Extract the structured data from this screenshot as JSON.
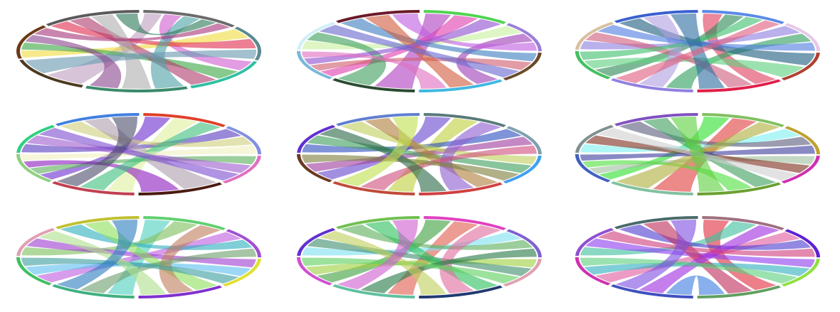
{
  "panels": [
    {
      "segments": [
        "#6b6b6b",
        "#5a8a90",
        "#2fbfa3",
        "#3a8a6a",
        "#4b3a1f",
        "#6b3a14",
        "#5a5a5a"
      ],
      "ribbons": [
        {
          "from": 0,
          "to": 4,
          "color": "#c0a0c0"
        },
        {
          "from": 0,
          "to": 2,
          "color": "#d060d0"
        },
        {
          "from": 1,
          "to": 5,
          "color": "#f0dc40"
        },
        {
          "from": 1,
          "to": 6,
          "color": "#e03050"
        },
        {
          "from": 2,
          "to": 5,
          "color": "#3fa848"
        },
        {
          "from": 2,
          "to": 6,
          "color": "#b04070"
        },
        {
          "from": 3,
          "to": 0,
          "color": "#4fa3a8"
        },
        {
          "from": 3,
          "to": 6,
          "color": "#b0b0b0"
        },
        {
          "from": 4,
          "to": 1,
          "color": "#6a9ab0"
        },
        {
          "from": 5,
          "to": 3,
          "color": "#8d4b8f"
        },
        {
          "from": 6,
          "to": 0,
          "color": "#2e7b5a"
        },
        {
          "from": 5,
          "to": 0,
          "color": "#a83a7a"
        }
      ]
    },
    {
      "segments": [
        "#4fd44f",
        "#9a80d8",
        "#6b4a2a",
        "#40b8e0",
        "#2a4a30",
        "#7ab8d8",
        "#d0f0f8",
        "#6b1a2a"
      ],
      "ribbons": [
        {
          "from": 0,
          "to": 4,
          "color": "#b040c0"
        },
        {
          "from": 0,
          "to": 5,
          "color": "#e040b0"
        },
        {
          "from": 1,
          "to": 6,
          "color": "#c8f0a0"
        },
        {
          "from": 1,
          "to": 3,
          "color": "#a040b8"
        },
        {
          "from": 2,
          "to": 7,
          "color": "#4080c0"
        },
        {
          "from": 2,
          "to": 5,
          "color": "#d06070"
        },
        {
          "from": 3,
          "to": 7,
          "color": "#d06040"
        },
        {
          "from": 4,
          "to": 6,
          "color": "#40a060"
        },
        {
          "from": 5,
          "to": 0,
          "color": "#9050d0"
        },
        {
          "from": 6,
          "to": 2,
          "color": "#6a6ad0"
        },
        {
          "from": 7,
          "to": 1,
          "color": "#c060e0"
        },
        {
          "from": 3,
          "to": 5,
          "color": "#e070c0"
        }
      ]
    },
    {
      "segments": [
        "#5a8ae8",
        "#e8c8e8",
        "#b04030",
        "#e0204a",
        "#9080e0",
        "#40c060",
        "#d8c0a0",
        "#3a60d0"
      ],
      "ribbons": [
        {
          "from": 0,
          "to": 3,
          "color": "#e04060"
        },
        {
          "from": 0,
          "to": 5,
          "color": "#2e8b57"
        },
        {
          "from": 1,
          "to": 6,
          "color": "#9080e0"
        },
        {
          "from": 1,
          "to": 4,
          "color": "#30a060"
        },
        {
          "from": 2,
          "to": 7,
          "color": "#206080"
        },
        {
          "from": 2,
          "to": 5,
          "color": "#60d080"
        },
        {
          "from": 3,
          "to": 6,
          "color": "#d06080"
        },
        {
          "from": 4,
          "to": 7,
          "color": "#b0a0e0"
        },
        {
          "from": 5,
          "to": 0,
          "color": "#40c070"
        },
        {
          "from": 6,
          "to": 1,
          "color": "#5080e0"
        },
        {
          "from": 7,
          "to": 3,
          "color": "#3070a0"
        },
        {
          "from": 4,
          "to": 0,
          "color": "#e06080"
        }
      ]
    },
    {
      "segments": [
        "#e0402a",
        "#8090e0",
        "#e070c0",
        "#4a1a10",
        "#c04050",
        "#90d080",
        "#30d080",
        "#4080e0"
      ],
      "ribbons": [
        {
          "from": 0,
          "to": 5,
          "color": "#7030d0"
        },
        {
          "from": 0,
          "to": 4,
          "color": "#e0f0a0"
        },
        {
          "from": 1,
          "to": 6,
          "color": "#5a40c0"
        },
        {
          "from": 1,
          "to": 7,
          "color": "#d0d080"
        },
        {
          "from": 2,
          "to": 5,
          "color": "#60b060"
        },
        {
          "from": 2,
          "to": 6,
          "color": "#a060d0"
        },
        {
          "from": 3,
          "to": 7,
          "color": "#b0a0b0"
        },
        {
          "from": 3,
          "to": 5,
          "color": "#9020c0"
        },
        {
          "from": 4,
          "to": 0,
          "color": "#40c080"
        },
        {
          "from": 5,
          "to": 1,
          "color": "#f0f0c0"
        },
        {
          "from": 6,
          "to": 2,
          "color": "#8050d0"
        },
        {
          "from": 7,
          "to": 4,
          "color": "#505070"
        }
      ]
    },
    {
      "segments": [
        "#5a7a7a",
        "#80a0b0",
        "#40a0f0",
        "#d04040",
        "#c04a3a",
        "#6a3a20",
        "#6030d0",
        "#6080d0"
      ],
      "ribbons": [
        {
          "from": 0,
          "to": 5,
          "color": "#6a4ad0"
        },
        {
          "from": 0,
          "to": 4,
          "color": "#c0d040"
        },
        {
          "from": 1,
          "to": 6,
          "color": "#3050c0"
        },
        {
          "from": 1,
          "to": 5,
          "color": "#a040a0"
        },
        {
          "from": 2,
          "to": 7,
          "color": "#c0d060"
        },
        {
          "from": 2,
          "to": 6,
          "color": "#40a060"
        },
        {
          "from": 3,
          "to": 7,
          "color": "#b08040"
        },
        {
          "from": 3,
          "to": 0,
          "color": "#9060d0"
        },
        {
          "from": 4,
          "to": 1,
          "color": "#d05080"
        },
        {
          "from": 5,
          "to": 2,
          "color": "#808040"
        },
        {
          "from": 6,
          "to": 3,
          "color": "#2e6b4a"
        },
        {
          "from": 7,
          "to": 4,
          "color": "#c0e050"
        }
      ]
    },
    {
      "segments": [
        "#80c060",
        "#c0a030",
        "#d030b0",
        "#6aa030",
        "#80c0a0",
        "#4060c0",
        "#809090",
        "#8050c0"
      ],
      "ribbons": [
        {
          "from": 0,
          "to": 5,
          "color": "#30e030"
        },
        {
          "from": 0,
          "to": 4,
          "color": "#e04040"
        },
        {
          "from": 1,
          "to": 6,
          "color": "#80f0f0"
        },
        {
          "from": 1,
          "to": 7,
          "color": "#606080"
        },
        {
          "from": 2,
          "to": 5,
          "color": "#a0c0a0"
        },
        {
          "from": 2,
          "to": 6,
          "color": "#803020"
        },
        {
          "from": 3,
          "to": 7,
          "color": "#40a060"
        },
        {
          "from": 3,
          "to": 5,
          "color": "#50e040"
        },
        {
          "from": 4,
          "to": 0,
          "color": "#b0b040"
        },
        {
          "from": 5,
          "to": 1,
          "color": "#4040a0"
        },
        {
          "from": 6,
          "to": 2,
          "color": "#d0d0d0"
        },
        {
          "from": 7,
          "to": 3,
          "color": "#60d040"
        }
      ]
    },
    {
      "segments": [
        "#60d070",
        "#a050d0",
        "#e0e030",
        "#8030d0",
        "#40b080",
        "#40c060",
        "#e0a0b0",
        "#c0c030"
      ],
      "ribbons": [
        {
          "from": 0,
          "to": 4,
          "color": "#50d0c0"
        },
        {
          "from": 0,
          "to": 6,
          "color": "#80c060"
        },
        {
          "from": 1,
          "to": 5,
          "color": "#c060e0"
        },
        {
          "from": 1,
          "to": 7,
          "color": "#30b0c0"
        },
        {
          "from": 2,
          "to": 6,
          "color": "#a040d0"
        },
        {
          "from": 2,
          "to": 5,
          "color": "#60c0f0"
        },
        {
          "from": 3,
          "to": 7,
          "color": "#90e060"
        },
        {
          "from": 3,
          "to": 0,
          "color": "#c08060"
        },
        {
          "from": 4,
          "to": 1,
          "color": "#70a070"
        },
        {
          "from": 5,
          "to": 2,
          "color": "#40a0a0"
        },
        {
          "from": 6,
          "to": 3,
          "color": "#b0e090"
        },
        {
          "from": 7,
          "to": 4,
          "color": "#3080c0"
        }
      ]
    },
    {
      "segments": [
        "#e040c0",
        "#8060d0",
        "#e0a0b0",
        "#203a70",
        "#60c0a0",
        "#d050d0",
        "#6030d0",
        "#70c050"
      ],
      "ribbons": [
        {
          "from": 0,
          "to": 5,
          "color": "#40a040"
        },
        {
          "from": 0,
          "to": 4,
          "color": "#e06050"
        },
        {
          "from": 1,
          "to": 6,
          "color": "#80e0f0"
        },
        {
          "from": 1,
          "to": 7,
          "color": "#60b060"
        },
        {
          "from": 2,
          "to": 5,
          "color": "#a0d040"
        },
        {
          "from": 2,
          "to": 6,
          "color": "#409070"
        },
        {
          "from": 3,
          "to": 7,
          "color": "#30c060"
        },
        {
          "from": 3,
          "to": 0,
          "color": "#e070a0"
        },
        {
          "from": 4,
          "to": 1,
          "color": "#2a7a4a"
        },
        {
          "from": 5,
          "to": 2,
          "color": "#60d060"
        },
        {
          "from": 6,
          "to": 3,
          "color": "#c0d060"
        },
        {
          "from": 7,
          "to": 4,
          "color": "#d060d0"
        }
      ]
    },
    {
      "segments": [
        "#a07080",
        "#6020d0",
        "#90e040",
        "#60a060",
        "#4050c0",
        "#d030b0",
        "#9050d0",
        "#4a6a6a"
      ],
      "ribbons": [
        {
          "from": 0,
          "to": 3,
          "color": "#e03040"
        },
        {
          "from": 0,
          "to": 6,
          "color": "#40c0a0"
        },
        {
          "from": 1,
          "to": 5,
          "color": "#e060a0"
        },
        {
          "from": 1,
          "to": 7,
          "color": "#5040d0"
        },
        {
          "from": 2,
          "to": 6,
          "color": "#9040f0"
        },
        {
          "from": 2,
          "to": 5,
          "color": "#30b0c0"
        },
        {
          "from": 3,
          "to": 7,
          "color": "#c03060"
        },
        {
          "from": 3,
          "to": 4,
          "color": "#4080e0"
        },
        {
          "from": 4,
          "to": 0,
          "color": "#a030e0"
        },
        {
          "from": 5,
          "to": 2,
          "color": "#60d080"
        },
        {
          "from": 6,
          "to": 1,
          "color": "#d04080"
        },
        {
          "from": 7,
          "to": 4,
          "color": "#8050e0"
        }
      ]
    }
  ]
}
